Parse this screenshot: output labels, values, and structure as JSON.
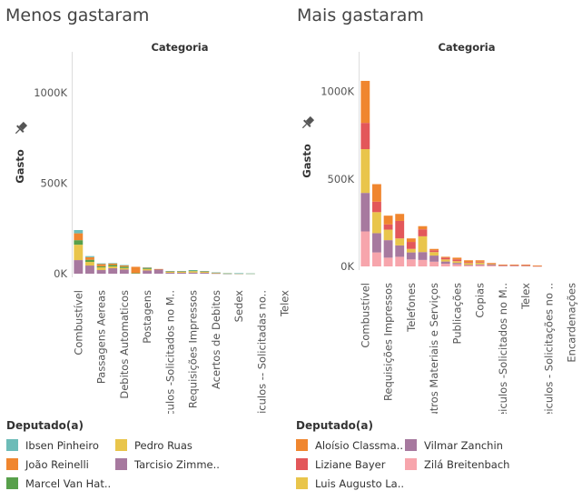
{
  "chart_data": [
    {
      "type": "bar",
      "stacked": true,
      "title": "Menos gastaram",
      "column_header": "Categoria",
      "ylabel": "Gasto",
      "ylim": [
        0,
        1200000
      ],
      "yticks": [
        0,
        500000,
        1000000
      ],
      "ytick_labels": [
        "0K",
        "500K",
        "1000K"
      ],
      "categories": [
        "Combustível",
        "",
        "Passagens Aereas",
        "",
        "Debitos Automaticos",
        "",
        "Postagens",
        "",
        "eiculos -Solicitados no M..",
        "",
        "Requisições Impressos",
        "",
        "Acertos de Debitos",
        "",
        "Sedex",
        "",
        "Veiculos -- Solicitadas no..",
        "",
        "Telex"
      ],
      "series": [
        {
          "name": "Ibsen Pinheiro",
          "values": [
            18000,
            6000,
            4000,
            3000,
            2000,
            0,
            2000,
            0,
            1000,
            1000,
            2000,
            1000,
            1000,
            0,
            500,
            500,
            0,
            0,
            0
          ]
        },
        {
          "name": "João Reinelli",
          "values": [
            38000,
            14000,
            12000,
            8000,
            7000,
            35000,
            2000,
            1000,
            1000,
            1000,
            0,
            1000,
            500,
            0,
            0,
            0,
            0,
            0,
            0
          ]
        },
        {
          "name": "Marcel Van Hat..",
          "values": [
            25000,
            12000,
            6000,
            8000,
            8000,
            3000,
            5000,
            0,
            3000,
            3000,
            4000,
            3000,
            1500,
            1000,
            500,
            0,
            0,
            0,
            0
          ]
        },
        {
          "name": "Pedro Ruas",
          "values": [
            85000,
            20000,
            15000,
            10000,
            8000,
            0,
            8000,
            0,
            5000,
            5000,
            8000,
            5000,
            2000,
            0,
            1000,
            500,
            0,
            0,
            0
          ]
        },
        {
          "name": "Tarcisio Zimme..",
          "values": [
            75000,
            45000,
            20000,
            30000,
            23000,
            0,
            18000,
            25000,
            5000,
            5000,
            6000,
            5000,
            2000,
            1000,
            1000,
            500,
            0,
            0,
            0
          ]
        }
      ]
    },
    {
      "type": "bar",
      "stacked": true,
      "title": "Mais gastaram",
      "column_header": "Categoria",
      "ylabel": "Gasto",
      "ylim": [
        0,
        1200000
      ],
      "yticks": [
        0,
        500000,
        1000000
      ],
      "ytick_labels": [
        "0K",
        "500K",
        "1000K"
      ],
      "categories": [
        "Combustível",
        "",
        "Requisições Impressos",
        "",
        "Telefones",
        "",
        "Outros Materiais e Serviços",
        "",
        "Publicações",
        "",
        "Copias",
        "",
        "Veiculos -Solicitados no M..",
        "",
        "Telex",
        "",
        "Veiculos - Solicitações no ..",
        "",
        "Encardenações"
      ],
      "series": [
        {
          "name": "Aloísio Classma..",
          "values": [
            240000,
            100000,
            50000,
            40000,
            20000,
            18000,
            8000,
            5000,
            10000,
            10000,
            8000,
            3000,
            1000,
            1000,
            2000,
            1000,
            0,
            0,
            0
          ]
        },
        {
          "name": "Liziane Bayer",
          "values": [
            150000,
            60000,
            30000,
            100000,
            40000,
            40000,
            10000,
            10000,
            10000,
            6000,
            5000,
            2000,
            1000,
            1000,
            1000,
            500,
            0,
            0,
            0
          ]
        },
        {
          "name": "Luis Augusto La..",
          "values": [
            250000,
            120000,
            60000,
            40000,
            20000,
            90000,
            20000,
            12000,
            10000,
            10000,
            10000,
            5000,
            2000,
            2000,
            2000,
            1000,
            0,
            0,
            0
          ]
        },
        {
          "name": "Vilmar Zanchin",
          "values": [
            220000,
            110000,
            100000,
            65000,
            40000,
            45000,
            35000,
            13000,
            8000,
            4000,
            5000,
            5000,
            3000,
            3000,
            2000,
            1000,
            0,
            0,
            0
          ]
        },
        {
          "name": "Zilá Breitenbach",
          "values": [
            200000,
            80000,
            50000,
            55000,
            40000,
            37000,
            27000,
            15000,
            12000,
            5000,
            7000,
            5000,
            3000,
            3000,
            3000,
            1500,
            0,
            0,
            0
          ]
        }
      ]
    }
  ],
  "legends": [
    {
      "title": "Deputado(a)",
      "items": [
        {
          "label": "Ibsen Pinheiro",
          "color": "#6dbcb8"
        },
        {
          "label": "Pedro Ruas",
          "color": "#e9c54b"
        },
        {
          "label": "João Reinelli",
          "color": "#f0862f"
        },
        {
          "label": "Tarcisio Zimme..",
          "color": "#a7799f"
        },
        {
          "label": "Marcel Van Hat..",
          "color": "#58a04b"
        }
      ]
    },
    {
      "title": "Deputado(a)",
      "items": [
        {
          "label": "Aloísio Classma..",
          "color": "#f0862f"
        },
        {
          "label": "Vilmar Zanchin",
          "color": "#a7799f"
        },
        {
          "label": "Liziane Bayer",
          "color": "#e3575a"
        },
        {
          "label": "Zilá Breitenbach",
          "color": "#f7a5ac"
        },
        {
          "label": "Luis Augusto La..",
          "color": "#e9c54b"
        }
      ]
    }
  ]
}
